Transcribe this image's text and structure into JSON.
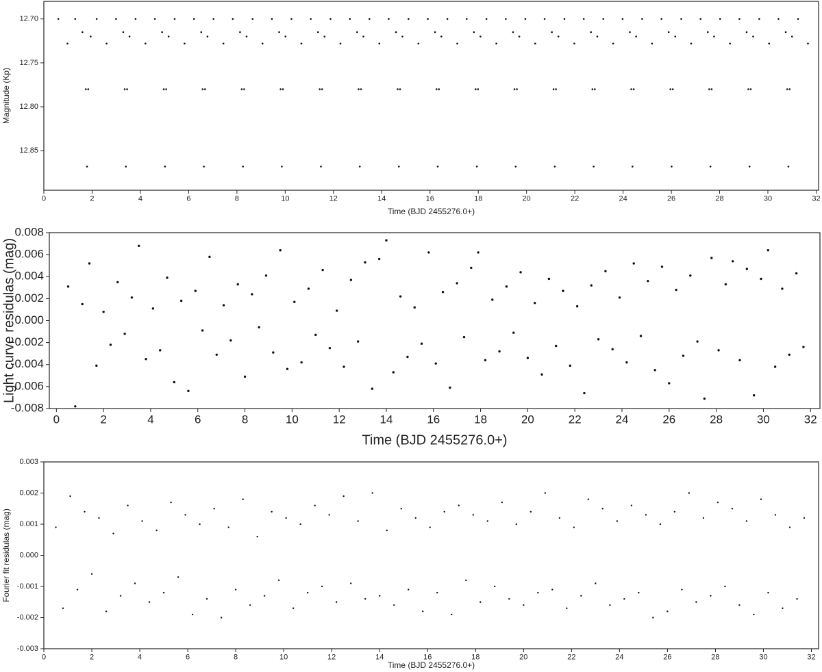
{
  "chart_data": [
    {
      "type": "scatter",
      "xlabel": "Time (BJD 2455276.0+)",
      "ylabel": "Magnitude (Kp)",
      "color": "#111111",
      "xlim": [
        0,
        32.1
      ],
      "ylim": [
        12.895,
        12.68
      ],
      "xticks": [
        0,
        2,
        4,
        6,
        8,
        10,
        12,
        14,
        16,
        18,
        20,
        22,
        24,
        26,
        28,
        30,
        32
      ],
      "yticks": [
        {
          "value": 12.7,
          "label": "12.70"
        },
        12.75,
        {
          "value": 12.8,
          "label": "12.80"
        },
        12.85
      ],
      "x": [
        0.6,
        0.98,
        1.3,
        1.6,
        1.74,
        1.79,
        1.84,
        1.94,
        2.19,
        2.6,
        2.99,
        3.29,
        3.35,
        3.4,
        3.45,
        3.55,
        3.8,
        4.21,
        4.6,
        4.9,
        4.97,
        5.02,
        5.07,
        5.17,
        5.42,
        5.83,
        6.22,
        6.52,
        6.58,
        6.63,
        6.68,
        6.78,
        7.03,
        7.44,
        7.83,
        8.13,
        8.2,
        8.25,
        8.3,
        8.4,
        8.65,
        9.06,
        9.45,
        9.75,
        9.81,
        9.86,
        9.91,
        10.01,
        10.26,
        10.67,
        11.06,
        11.36,
        11.43,
        11.48,
        11.53,
        11.63,
        11.88,
        12.29,
        12.68,
        12.98,
        13.04,
        13.09,
        13.14,
        13.24,
        13.49,
        13.9,
        14.29,
        14.59,
        14.66,
        14.71,
        14.76,
        14.86,
        15.11,
        15.52,
        15.91,
        16.21,
        16.27,
        16.32,
        16.37,
        16.47,
        16.72,
        17.13,
        17.52,
        17.82,
        17.89,
        17.94,
        17.99,
        18.09,
        18.34,
        18.75,
        19.14,
        19.44,
        19.5,
        19.55,
        19.6,
        19.7,
        19.95,
        20.36,
        20.75,
        21.05,
        21.12,
        21.17,
        21.22,
        21.32,
        21.57,
        21.98,
        22.37,
        22.67,
        22.73,
        22.78,
        22.83,
        22.93,
        23.18,
        23.59,
        23.98,
        24.28,
        24.34,
        24.39,
        24.44,
        24.54,
        24.79,
        25.2,
        25.59,
        25.89,
        25.96,
        26.01,
        26.06,
        26.16,
        26.41,
        26.82,
        27.21,
        27.51,
        27.57,
        27.62,
        27.67,
        27.77,
        28.02,
        28.43,
        28.82,
        29.12,
        29.19,
        29.24,
        29.29,
        29.39,
        29.64,
        30.05,
        30.44,
        30.74,
        30.8,
        30.85,
        30.9,
        31.0,
        31.25,
        31.66
      ],
      "values": [
        12.7,
        12.728,
        12.7,
        12.715,
        12.78,
        12.868,
        12.78,
        12.72,
        12.7,
        12.728,
        12.7,
        12.715,
        12.78,
        12.868,
        12.78,
        12.72,
        12.7,
        12.728,
        12.7,
        12.715,
        12.78,
        12.868,
        12.78,
        12.72,
        12.7,
        12.728,
        12.7,
        12.715,
        12.78,
        12.868,
        12.78,
        12.72,
        12.7,
        12.728,
        12.7,
        12.715,
        12.78,
        12.868,
        12.78,
        12.72,
        12.7,
        12.728,
        12.7,
        12.715,
        12.78,
        12.868,
        12.78,
        12.72,
        12.7,
        12.728,
        12.7,
        12.715,
        12.78,
        12.868,
        12.78,
        12.72,
        12.7,
        12.728,
        12.7,
        12.715,
        12.78,
        12.868,
        12.78,
        12.72,
        12.7,
        12.728,
        12.7,
        12.715,
        12.78,
        12.868,
        12.78,
        12.72,
        12.7,
        12.728,
        12.7,
        12.715,
        12.78,
        12.868,
        12.78,
        12.72,
        12.7,
        12.728,
        12.7,
        12.715,
        12.78,
        12.868,
        12.78,
        12.72,
        12.7,
        12.728,
        12.7,
        12.715,
        12.78,
        12.868,
        12.78,
        12.72,
        12.7,
        12.728,
        12.7,
        12.715,
        12.78,
        12.868,
        12.78,
        12.72,
        12.7,
        12.728,
        12.7,
        12.715,
        12.78,
        12.868,
        12.78,
        12.72,
        12.7,
        12.728,
        12.7,
        12.715,
        12.78,
        12.868,
        12.78,
        12.72,
        12.7,
        12.728,
        12.7,
        12.715,
        12.78,
        12.868,
        12.78,
        12.72,
        12.7,
        12.728,
        12.7,
        12.715,
        12.78,
        12.868,
        12.78,
        12.72,
        12.7,
        12.728,
        12.7,
        12.715,
        12.78,
        12.868,
        12.78,
        12.72,
        12.7,
        12.728,
        12.7,
        12.715,
        12.78,
        12.868,
        12.78,
        12.72,
        12.7,
        12.728
      ]
    },
    {
      "type": "scatter",
      "xlabel": "Time (BJD 2455276.0+)",
      "ylabel": "Light curve residulas (mag)",
      "color": "#111111",
      "xlim": [
        -0.3,
        32.4
      ],
      "ylim": [
        -0.008,
        0.008
      ],
      "xticks": [
        0,
        2,
        4,
        6,
        8,
        10,
        12,
        14,
        16,
        18,
        20,
        22,
        24,
        26,
        28,
        30,
        32
      ],
      "yticks": [
        -0.008,
        -0.006,
        -0.004,
        -0.002,
        {
          "value": 0,
          "label": "0.000"
        },
        0.002,
        0.004,
        0.006,
        0.008
      ],
      "x": [
        0.5,
        0.8,
        1.1,
        1.4,
        1.7,
        2.0,
        2.3,
        2.6,
        2.9,
        3.2,
        3.5,
        3.8,
        4.1,
        4.4,
        4.7,
        5.0,
        5.3,
        5.6,
        5.9,
        6.2,
        6.5,
        6.8,
        7.1,
        7.4,
        7.7,
        8.0,
        8.3,
        8.6,
        8.9,
        9.2,
        9.5,
        9.8,
        10.1,
        10.4,
        10.7,
        11.0,
        11.3,
        11.6,
        11.9,
        12.2,
        12.5,
        12.8,
        13.1,
        13.4,
        13.7,
        14.0,
        14.3,
        14.6,
        14.9,
        15.2,
        15.5,
        15.8,
        16.1,
        16.4,
        16.7,
        17.0,
        17.3,
        17.6,
        17.9,
        18.2,
        18.5,
        18.8,
        19.1,
        19.4,
        19.7,
        20.0,
        20.3,
        20.6,
        20.9,
        21.2,
        21.5,
        21.8,
        22.1,
        22.4,
        22.7,
        23.0,
        23.3,
        23.6,
        23.9,
        24.2,
        24.5,
        24.8,
        25.1,
        25.4,
        25.7,
        26.0,
        26.3,
        26.6,
        26.9,
        27.2,
        27.5,
        27.8,
        28.1,
        28.4,
        28.7,
        29.0,
        29.3,
        29.6,
        29.9,
        30.2,
        30.5,
        30.8,
        31.1,
        31.4,
        31.7
      ],
      "values": [
        0.0031,
        -0.0078,
        0.0015,
        0.0052,
        -0.0041,
        0.0008,
        -0.0022,
        0.0035,
        -0.0012,
        0.0021,
        0.0068,
        -0.0035,
        0.0011,
        -0.0027,
        0.0039,
        -0.0056,
        0.0018,
        -0.0064,
        0.0027,
        -0.0009,
        0.0058,
        -0.0031,
        0.0014,
        -0.0018,
        0.0033,
        -0.0051,
        0.0024,
        -0.0006,
        0.0041,
        -0.0029,
        0.0064,
        -0.0044,
        0.0017,
        -0.0038,
        0.0029,
        -0.0013,
        0.0046,
        -0.0025,
        0.0009,
        -0.0042,
        0.0037,
        -0.0019,
        0.0053,
        -0.0062,
        0.0056,
        0.0073,
        -0.0047,
        0.0022,
        -0.0033,
        0.0012,
        -0.0021,
        0.0062,
        -0.0039,
        0.0026,
        -0.0061,
        0.0034,
        -0.0015,
        0.0048,
        0.0062,
        -0.0036,
        0.0019,
        -0.0028,
        0.0031,
        -0.0011,
        0.0044,
        -0.0034,
        0.0016,
        -0.0049,
        0.0038,
        -0.0023,
        0.0027,
        -0.0041,
        0.0013,
        -0.0066,
        0.0032,
        -0.0017,
        0.0045,
        -0.0026,
        0.0021,
        -0.0038,
        0.0052,
        -0.0014,
        0.0036,
        -0.0045,
        0.0049,
        -0.0057,
        0.0028,
        -0.0032,
        0.0041,
        -0.0019,
        -0.0071,
        0.0057,
        -0.0027,
        0.0033,
        0.0054,
        -0.0036,
        0.0047,
        -0.0068,
        0.0038,
        0.0064,
        -0.0042,
        0.0029,
        -0.0031,
        0.0043,
        -0.0024
      ]
    },
    {
      "type": "scatter",
      "xlabel": "Time (BJD 2455276.0+)",
      "ylabel": "Fourier fit residulas (mag)",
      "color": "#111111",
      "xlim": [
        0,
        32.3
      ],
      "ylim": [
        -0.003,
        0.003
      ],
      "xticks": [
        0,
        2,
        4,
        6,
        8,
        10,
        12,
        14,
        16,
        18,
        20,
        22,
        24,
        26,
        28,
        30,
        32
      ],
      "yticks": [
        -0.003,
        -0.002,
        -0.001,
        {
          "value": 0,
          "label": "0.000"
        },
        0.001,
        0.002,
        0.003
      ],
      "x": [
        0.5,
        0.8,
        1.1,
        1.4,
        1.7,
        2.0,
        2.3,
        2.6,
        2.9,
        3.2,
        3.5,
        3.8,
        4.1,
        4.4,
        4.7,
        5.0,
        5.3,
        5.6,
        5.9,
        6.2,
        6.5,
        6.8,
        7.1,
        7.4,
        7.7,
        8.0,
        8.3,
        8.6,
        8.9,
        9.2,
        9.5,
        9.8,
        10.1,
        10.4,
        10.7,
        11.0,
        11.3,
        11.6,
        11.9,
        12.2,
        12.5,
        12.8,
        13.1,
        13.4,
        13.7,
        14.0,
        14.3,
        14.6,
        14.9,
        15.2,
        15.5,
        15.8,
        16.1,
        16.4,
        16.7,
        17.0,
        17.3,
        17.6,
        17.9,
        18.2,
        18.5,
        18.8,
        19.1,
        19.4,
        19.7,
        20.0,
        20.3,
        20.6,
        20.9,
        21.2,
        21.5,
        21.8,
        22.1,
        22.4,
        22.7,
        23.0,
        23.3,
        23.6,
        23.9,
        24.2,
        24.5,
        24.8,
        25.1,
        25.4,
        25.7,
        26.0,
        26.3,
        26.6,
        26.9,
        27.2,
        27.5,
        27.8,
        28.1,
        28.4,
        28.7,
        29.0,
        29.3,
        29.6,
        29.9,
        30.2,
        30.5,
        30.8,
        31.1,
        31.4,
        31.7
      ],
      "values": [
        0.0009,
        -0.0017,
        0.0019,
        -0.0011,
        0.0014,
        -0.0006,
        0.0012,
        -0.0018,
        0.0007,
        -0.0013,
        0.0016,
        -0.0009,
        0.0011,
        -0.0015,
        0.0008,
        -0.0012,
        0.0017,
        -0.0007,
        0.0013,
        -0.0019,
        0.001,
        -0.0014,
        0.0015,
        -0.002,
        0.0009,
        -0.0011,
        0.0018,
        -0.0016,
        0.0006,
        -0.0013,
        0.0014,
        -0.0008,
        0.0012,
        -0.0017,
        0.001,
        -0.0012,
        0.0016,
        -0.001,
        0.0013,
        -0.0015,
        0.0019,
        -0.0009,
        0.0011,
        -0.0014,
        0.002,
        -0.0013,
        0.0008,
        -0.0016,
        0.0015,
        -0.0011,
        0.0012,
        -0.0018,
        0.0009,
        -0.0012,
        0.0014,
        -0.0019,
        0.0016,
        -0.0008,
        0.0013,
        -0.0015,
        0.0011,
        -0.001,
        0.0017,
        -0.0014,
        0.001,
        -0.0016,
        0.0014,
        -0.0012,
        0.002,
        -0.0011,
        0.0012,
        -0.0017,
        0.0009,
        -0.0013,
        0.0018,
        -0.0009,
        0.0015,
        -0.0016,
        0.0011,
        -0.0014,
        0.0016,
        -0.0012,
        0.0013,
        -0.002,
        0.001,
        -0.0018,
        0.0014,
        -0.0011,
        0.002,
        -0.0015,
        0.0012,
        -0.0013,
        0.0017,
        -0.001,
        0.0015,
        -0.0016,
        0.0011,
        -0.0019,
        0.0018,
        -0.0012,
        0.0013,
        -0.0017,
        0.0009,
        -0.0014,
        0.0012
      ]
    }
  ]
}
